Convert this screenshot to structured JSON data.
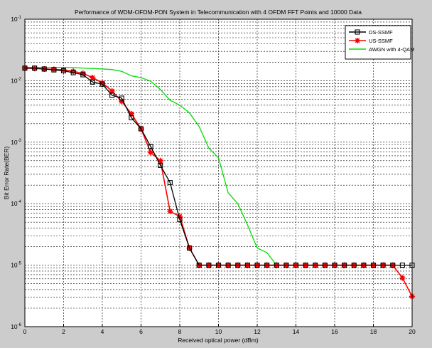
{
  "chart_data": {
    "type": "line",
    "title": "Performance of WDM-OFDM-PON System in Telecommunication with 4 OFDM FFT Points and 10000 Data",
    "xlabel": "Received optical power (dBm)",
    "ylabel": "Bit Error Rate(BER)",
    "xlim": [
      0,
      20
    ],
    "ylim": [
      1e-06,
      0.1
    ],
    "yscale": "log",
    "grid": true,
    "legend_position": "top-right",
    "x_ticks": [
      "0",
      "2",
      "4",
      "6",
      "8",
      "10",
      "12",
      "14",
      "16",
      "18",
      "20"
    ],
    "y_ticks": [
      {
        "base": "10",
        "exp": "-1",
        "value": 0.1
      },
      {
        "base": "10",
        "exp": "-2",
        "value": 0.01
      },
      {
        "base": "10",
        "exp": "-3",
        "value": 0.001
      },
      {
        "base": "10",
        "exp": "-4",
        "value": 0.0001
      },
      {
        "base": "10",
        "exp": "-5",
        "value": 1e-05
      },
      {
        "base": "10",
        "exp": "-6",
        "value": 1e-06
      }
    ],
    "series": [
      {
        "name": "DS-SSMF",
        "color": "#000000",
        "marker": "square",
        "x": [
          0,
          0.5,
          1,
          1.5,
          2,
          2.5,
          3,
          3.5,
          4,
          4.5,
          5,
          5.5,
          6,
          6.5,
          7,
          7.5,
          8,
          8.5,
          9,
          9.5,
          10,
          10.5,
          11,
          11.5,
          12,
          12.5,
          13,
          13.5,
          14,
          14.5,
          15,
          15.5,
          16,
          16.5,
          17,
          17.5,
          18,
          18.5,
          19,
          19.5,
          20
        ],
        "y": [
          0.016,
          0.016,
          0.0155,
          0.015,
          0.0145,
          0.0135,
          0.0125,
          0.0095,
          0.0088,
          0.0058,
          0.0052,
          0.0025,
          0.00165,
          0.00085,
          0.00042,
          0.00022,
          5.5e-05,
          1.9e-05,
          1e-05,
          1e-05,
          1e-05,
          1e-05,
          1e-05,
          1e-05,
          1e-05,
          1e-05,
          1e-05,
          1e-05,
          1e-05,
          1e-05,
          1e-05,
          1e-05,
          1e-05,
          1e-05,
          1e-05,
          1e-05,
          1e-05,
          1e-05,
          1e-05,
          1e-05,
          1e-05
        ]
      },
      {
        "name": "US-SSMF",
        "color": "#ff0000",
        "marker": "star",
        "x": [
          0,
          0.5,
          1,
          1.5,
          2,
          2.5,
          3,
          3.5,
          4,
          4.5,
          5,
          5.5,
          6,
          6.5,
          7,
          7.5,
          8,
          8.5,
          9,
          9.5,
          10,
          10.5,
          11,
          11.5,
          12,
          12.5,
          13,
          13.5,
          14,
          14.5,
          15,
          15.5,
          16,
          16.5,
          17,
          17.5,
          18,
          18.5,
          19,
          19.5,
          20
        ],
        "y": [
          0.016,
          0.0158,
          0.0155,
          0.0153,
          0.015,
          0.0142,
          0.0132,
          0.0112,
          0.0092,
          0.0068,
          0.0046,
          0.0029,
          0.00165,
          0.00068,
          0.0005,
          7.5e-05,
          6.2e-05,
          1.9e-05,
          1e-05,
          1e-05,
          1e-05,
          1e-05,
          1e-05,
          1e-05,
          1e-05,
          1e-05,
          1e-05,
          1e-05,
          1e-05,
          1e-05,
          1e-05,
          1e-05,
          1e-05,
          1e-05,
          1e-05,
          1e-05,
          1e-05,
          1e-05,
          1e-05,
          6.2e-06,
          3.1e-06
        ]
      },
      {
        "name": "AWGN with 4-QAM",
        "color": "#00dd00",
        "marker": "none",
        "x": [
          0,
          0.5,
          1,
          1.5,
          2,
          2.5,
          3,
          3.5,
          4,
          4.5,
          5,
          5.5,
          6,
          6.5,
          7,
          7.5,
          8,
          8.5,
          9,
          9.5,
          10,
          10.5,
          11,
          11.5,
          12,
          12.5,
          13,
          13.5,
          14,
          14.5,
          15,
          15.5,
          16,
          16.5,
          17,
          17.5,
          18,
          18.5,
          19,
          19.5,
          20
        ],
        "y": [
          0.0165,
          0.0165,
          0.0165,
          0.0165,
          0.0165,
          0.0163,
          0.016,
          0.0158,
          0.0155,
          0.0152,
          0.0142,
          0.012,
          0.0112,
          0.0098,
          0.0072,
          0.0048,
          0.004,
          0.003,
          0.0018,
          0.0008,
          0.00056,
          0.00015,
          0.0001,
          4.5e-05,
          1.9e-05,
          1.6e-05,
          1e-05,
          1e-05,
          1e-05,
          1e-05,
          1e-05,
          1e-05,
          1e-05,
          1e-05,
          1e-05,
          1e-05,
          1e-05,
          1e-05,
          1e-05,
          1e-05,
          1e-05
        ]
      }
    ]
  }
}
